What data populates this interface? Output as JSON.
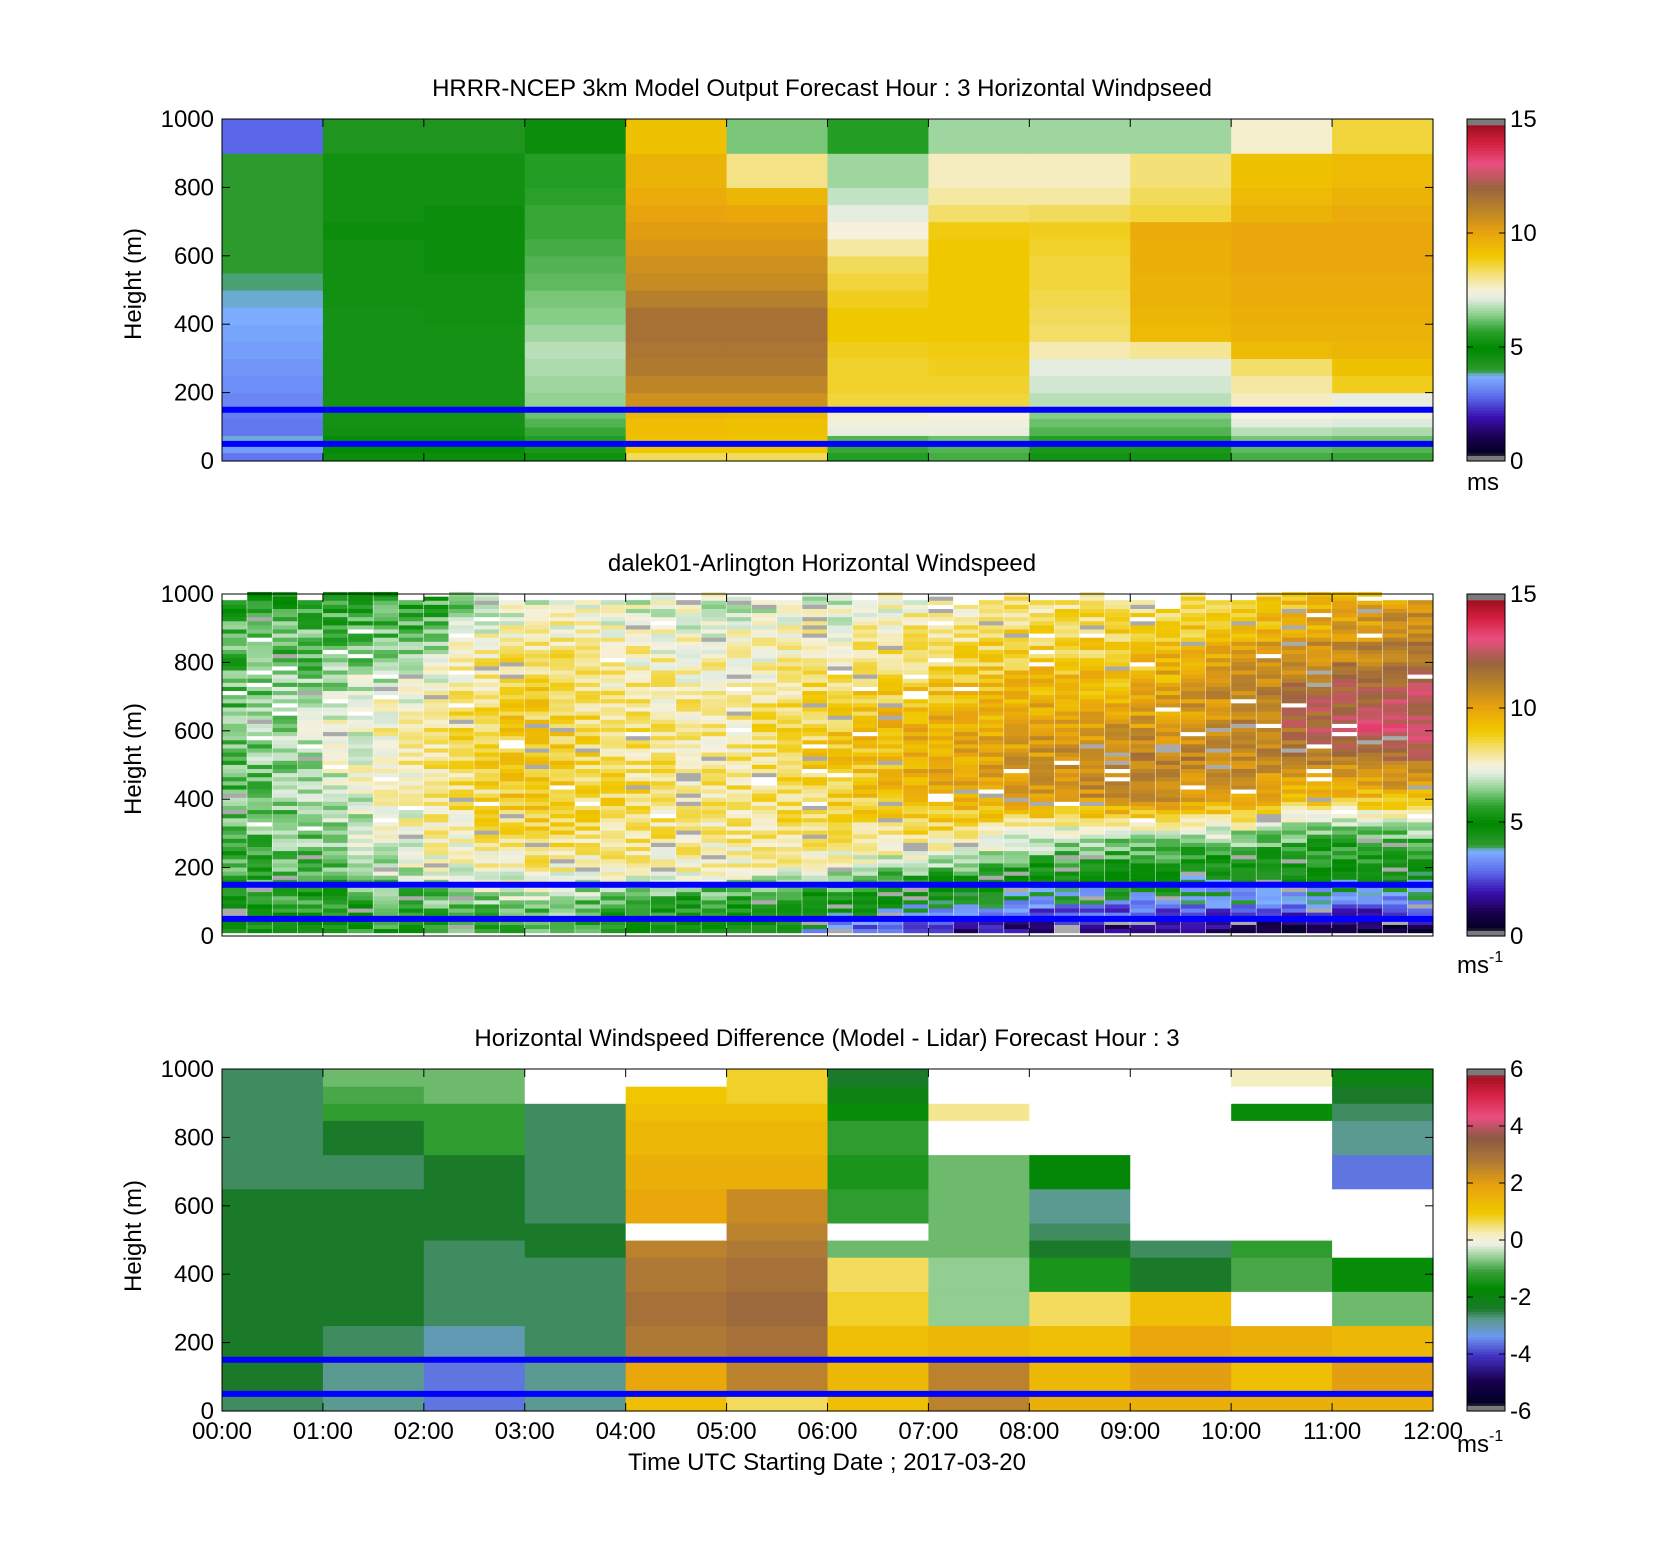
{
  "x_tick_labels": [
    "00:00",
    "01:00",
    "02:00",
    "03:00",
    "04:00",
    "05:00",
    "06:00",
    "07:00",
    "08:00",
    "09:00",
    "10:00",
    "11:00",
    "12:00"
  ],
  "xlabel": "Time UTC  Starting Date ; 2017-03-20",
  "chart_data": [
    {
      "type": "heatmap",
      "title": "HRRR-NCEP 3km Model Output   Forecast Hour : 3 Horizontal Windpseed",
      "ylabel": "Height (m)",
      "ylim": [
        0,
        1000
      ],
      "xlim": [
        "00:00",
        "12:00"
      ],
      "y_ticks": [
        0,
        200,
        400,
        600,
        800,
        1000
      ],
      "colorbar": {
        "ticks": [
          0,
          5,
          10,
          15
        ],
        "range": [
          0,
          15
        ],
        "unit": "ms",
        "unit_sup": "",
        "palette": "speed"
      },
      "reference_lines_m": [
        150,
        50
      ],
      "reference_line_color": "#0000ff",
      "x_bounds": [
        "00:00",
        "01:00",
        "02:00",
        "03:00",
        "04:00",
        "05:00",
        "06:00",
        "07:00",
        "08:00",
        "09:00",
        "10:00",
        "11:00",
        "12:00"
      ],
      "y_bounds": [
        0,
        25,
        50,
        75,
        100,
        125,
        150,
        200,
        250,
        300,
        350,
        400,
        450,
        500,
        550,
        600,
        650,
        700,
        750,
        800,
        900,
        1000
      ],
      "values": [
        [
          3.0,
          4.7,
          4.7,
          5.2,
          8.4,
          8.4,
          5.6,
          5.9,
          5.3,
          5.3,
          5.9,
          5.8
        ],
        [
          3.5,
          5.0,
          5.0,
          5.4,
          9.0,
          9.0,
          5.8,
          6.0,
          5.4,
          5.4,
          6.1,
          6.0
        ],
        [
          3.8,
          4.8,
          4.8,
          5.6,
          9.2,
          9.1,
          6.0,
          6.2,
          5.6,
          5.6,
          6.3,
          6.2
        ],
        [
          3.0,
          4.6,
          4.6,
          5.8,
          9.3,
          9.2,
          7.3,
          7.3,
          6.0,
          6.0,
          6.8,
          6.7
        ],
        [
          3.0,
          4.5,
          4.5,
          6.0,
          9.3,
          9.2,
          7.4,
          7.4,
          6.2,
          6.2,
          7.2,
          7.1
        ],
        [
          3.1,
          4.5,
          4.5,
          6.2,
          9.5,
          9.4,
          7.6,
          7.5,
          6.4,
          6.4,
          7.5,
          7.4
        ],
        [
          3.2,
          4.5,
          4.5,
          6.5,
          10.6,
          10.6,
          8.6,
          8.6,
          6.8,
          6.8,
          7.7,
          7.3
        ],
        [
          3.3,
          4.5,
          4.5,
          6.6,
          11.0,
          11.0,
          8.7,
          8.7,
          7.0,
          7.0,
          7.9,
          8.8
        ],
        [
          3.4,
          4.5,
          4.5,
          6.7,
          11.3,
          11.3,
          8.7,
          8.8,
          7.2,
          7.2,
          8.3,
          9.2
        ],
        [
          3.5,
          4.5,
          4.5,
          6.8,
          11.5,
          11.5,
          8.8,
          8.9,
          7.8,
          8.0,
          9.4,
          9.5
        ],
        [
          3.6,
          4.5,
          4.5,
          6.6,
          11.6,
          11.6,
          9.0,
          9.0,
          8.3,
          9.4,
          9.6,
          9.6
        ],
        [
          3.7,
          4.5,
          4.6,
          6.4,
          11.6,
          11.6,
          9.0,
          9.0,
          8.4,
          9.5,
          9.7,
          9.7
        ],
        [
          3.8,
          4.6,
          4.6,
          6.3,
          11.2,
          11.2,
          8.8,
          9.0,
          8.5,
          9.6,
          9.8,
          9.8
        ],
        [
          3.9,
          4.6,
          4.6,
          6.1,
          10.8,
          10.8,
          8.6,
          9.0,
          8.6,
          9.6,
          9.8,
          9.8
        ],
        [
          4.0,
          4.6,
          4.7,
          6.0,
          10.6,
          10.6,
          8.4,
          9.0,
          8.6,
          9.7,
          9.9,
          9.9
        ],
        [
          4.0,
          4.6,
          4.7,
          5.9,
          10.4,
          10.4,
          7.9,
          9.0,
          8.7,
          9.7,
          9.9,
          9.9
        ],
        [
          4.0,
          4.7,
          4.7,
          5.8,
          10.2,
          10.2,
          7.5,
          8.9,
          8.8,
          9.8,
          9.9,
          9.9
        ],
        [
          4.0,
          4.6,
          4.7,
          5.8,
          10.0,
          9.9,
          7.2,
          8.3,
          8.4,
          8.6,
          9.6,
          9.8
        ],
        [
          4.0,
          4.6,
          4.6,
          5.7,
          9.8,
          9.5,
          6.9,
          7.9,
          7.9,
          8.4,
          9.4,
          9.6
        ],
        [
          4.0,
          4.6,
          4.6,
          5.6,
          9.6,
          8.1,
          6.6,
          7.7,
          7.7,
          8.2,
          9.2,
          9.4
        ],
        [
          2.8,
          4.3,
          4.3,
          4.7,
          9.2,
          6.3,
          5.6,
          6.6,
          6.6,
          6.6,
          7.6,
          8.6
        ]
      ],
      "missing_value_color": "#aaaaaa"
    },
    {
      "type": "heatmap",
      "title": "dalek01-Arlington  Horizontal Windspeed",
      "ylabel": "Height (m)",
      "ylim": [
        0,
        1000
      ],
      "xlim": [
        "00:00",
        "12:00"
      ],
      "y_ticks": [
        0,
        200,
        400,
        600,
        800,
        1000
      ],
      "colorbar": {
        "ticks": [
          0,
          5,
          10,
          15
        ],
        "range": [
          0,
          15
        ],
        "unit": "ms",
        "unit_sup": "-1",
        "palette": "speed"
      },
      "reference_lines_m": [
        150,
        50
      ],
      "reference_line_color": "#0000ff",
      "time_bins_per_hour": 4,
      "profile_anchor_heights_m": [
        25,
        100,
        200,
        300,
        400,
        500,
        600,
        700,
        800,
        900,
        1000
      ],
      "profile_data_top_m": 1000,
      "hourly_profiles_ms": [
        [
          5.0,
          5.2,
          5.8,
          5.9,
          6.0,
          6.0,
          6.1,
          6.0,
          6.0,
          6.2,
          5.0
        ],
        [
          5.2,
          5.5,
          6.2,
          6.5,
          6.8,
          7.0,
          7.0,
          6.9,
          6.2,
          6.0,
          5.2
        ],
        [
          5.6,
          6.0,
          7.3,
          7.6,
          7.8,
          8.0,
          8.0,
          7.5,
          7.0,
          6.0,
          5.5
        ],
        [
          6.0,
          6.8,
          8.0,
          8.5,
          9.0,
          9.0,
          9.0,
          8.8,
          8.5,
          7.8,
          7.0
        ],
        [
          5.2,
          6.0,
          7.8,
          8.2,
          8.4,
          8.3,
          8.2,
          8.0,
          7.8,
          7.5,
          7.0
        ],
        [
          5.0,
          5.5,
          7.8,
          8.0,
          8.0,
          8.0,
          7.9,
          7.8,
          7.6,
          7.2,
          7.0
        ],
        [
          3.5,
          5.0,
          7.5,
          8.3,
          8.6,
          8.8,
          8.8,
          8.5,
          8.0,
          7.5,
          7.0
        ],
        [
          2.0,
          4.5,
          6.5,
          8.5,
          9.5,
          9.8,
          9.8,
          9.2,
          8.5,
          8.0,
          7.5
        ],
        [
          1.5,
          3.8,
          5.5,
          7.5,
          10.0,
          10.5,
          10.0,
          9.5,
          9.0,
          8.5,
          8.0
        ],
        [
          1.5,
          3.5,
          5.2,
          7.0,
          11.0,
          11.2,
          10.5,
          9.5,
          9.0,
          8.5,
          8.0
        ],
        [
          1.2,
          3.5,
          5.0,
          7.0,
          10.0,
          11.0,
          10.5,
          10.8,
          10.5,
          9.0,
          8.0
        ],
        [
          1.0,
          3.5,
          5.0,
          6.0,
          9.0,
          11.0,
          12.5,
          12.0,
          11.0,
          10.0,
          9.5
        ],
        [
          1.0,
          3.5,
          5.0,
          6.5,
          9.5,
          11.5,
          13.0,
          12.5,
          11.5,
          11.0,
          10.0
        ]
      ],
      "top_profile_cutoff_m": 1000,
      "missing_value_color": "#aaaaaa"
    },
    {
      "type": "heatmap",
      "title": "Horizontal Windspeed Difference (Model - Lidar) Forecast Hour : 3",
      "ylabel": "Height (m)",
      "ylim": [
        0,
        1000
      ],
      "xlim": [
        "00:00",
        "12:00"
      ],
      "y_ticks": [
        0,
        200,
        400,
        600,
        800,
        1000
      ],
      "colorbar": {
        "ticks": [
          -6,
          -4,
          -2,
          0,
          2,
          4,
          6
        ],
        "range": [
          -6,
          6
        ],
        "unit": "ms",
        "unit_sup": "-1",
        "palette": "diff"
      },
      "reference_lines_m": [
        150,
        50
      ],
      "reference_line_color": "#0000ff",
      "x_bounds": [
        "00:00",
        "01:00",
        "02:00",
        "03:00",
        "04:00",
        "05:00",
        "06:00",
        "07:00",
        "08:00",
        "09:00",
        "10:00",
        "11:00",
        "12:00"
      ],
      "y_bounds": [
        0,
        50,
        150,
        250,
        350,
        450,
        500,
        550,
        650,
        750,
        850,
        900,
        950,
        1000
      ],
      "values": [
        [
          -2.6,
          -2.8,
          -3.6,
          -2.8,
          1.2,
          0.6,
          1.2,
          2.6,
          1.6,
          1.6,
          1.6,
          1.6
        ],
        [
          -2.4,
          -2.8,
          -3.6,
          -2.8,
          1.8,
          2.6,
          1.4,
          2.6,
          1.4,
          2.0,
          1.2,
          2.0
        ],
        [
          -2.4,
          -2.6,
          -3.0,
          -2.6,
          2.8,
          3.0,
          1.2,
          1.4,
          1.2,
          1.8,
          1.6,
          1.4
        ],
        [
          -2.4,
          -2.4,
          -2.6,
          -2.6,
          3.0,
          3.2,
          0.8,
          -0.6,
          0.6,
          1.2,
          null,
          -0.8
        ],
        [
          -2.4,
          -2.4,
          -2.6,
          -2.6,
          2.8,
          3.0,
          0.6,
          -0.6,
          -1.4,
          -2.4,
          -1.0,
          -1.6
        ],
        [
          -2.4,
          -2.4,
          -2.6,
          -2.4,
          2.6,
          2.8,
          -0.8,
          -0.8,
          -2.4,
          -2.6,
          -1.2,
          null
        ],
        [
          -2.4,
          -2.4,
          -2.4,
          -2.4,
          null,
          2.6,
          null,
          -0.8,
          -2.6,
          null,
          null,
          null
        ],
        [
          -2.4,
          -2.4,
          -2.4,
          -2.6,
          1.8,
          2.4,
          -1.2,
          -0.8,
          -2.8,
          null,
          null,
          null
        ],
        [
          -2.6,
          -2.6,
          -2.4,
          -2.6,
          1.6,
          1.6,
          -1.4,
          -0.8,
          -1.8,
          null,
          null,
          -3.6
        ],
        [
          -2.6,
          -2.4,
          -1.2,
          -2.6,
          1.4,
          1.4,
          -1.2,
          null,
          null,
          null,
          null,
          -2.8
        ],
        [
          -2.6,
          -1.2,
          -1.2,
          -2.6,
          1.2,
          1.2,
          -1.6,
          0.4,
          null,
          null,
          -1.6,
          -2.6
        ],
        [
          -2.6,
          -1.0,
          -0.8,
          null,
          1.0,
          0.8,
          -2.0,
          null,
          null,
          null,
          null,
          -2.4
        ],
        [
          -2.6,
          -0.8,
          -0.8,
          null,
          null,
          0.8,
          -2.4,
          null,
          null,
          null,
          0.2,
          -2.0
        ]
      ],
      "missing_value_color": "#ffffff"
    }
  ],
  "palettes": {
    "speed": [
      [
        0.0,
        "#7a7a7a"
      ],
      [
        0.02,
        "#7a7a7a"
      ],
      [
        0.021,
        "#000022"
      ],
      [
        0.07,
        "#1a0050"
      ],
      [
        0.13,
        "#3a10b0"
      ],
      [
        0.19,
        "#5c6cec"
      ],
      [
        0.25,
        "#7eb0ff"
      ],
      [
        0.265,
        "#2e9a2e"
      ],
      [
        0.33,
        "#008a00"
      ],
      [
        0.38,
        "#2aa02a"
      ],
      [
        0.43,
        "#8dd08d"
      ],
      [
        0.475,
        "#e0ece0"
      ],
      [
        0.5,
        "#f6f1dc"
      ],
      [
        0.55,
        "#f3e070"
      ],
      [
        0.6,
        "#f0c800"
      ],
      [
        0.67,
        "#e8a20e"
      ],
      [
        0.74,
        "#b8822a"
      ],
      [
        0.8,
        "#9a6440"
      ],
      [
        0.87,
        "#ea4e80"
      ],
      [
        0.93,
        "#d42040"
      ],
      [
        0.98,
        "#a01020"
      ],
      [
        0.981,
        "#7a7a7a"
      ],
      [
        1.0,
        "#7a7a7a"
      ]
    ],
    "diff": [
      [
        0.0,
        "#7a7a7a"
      ],
      [
        0.02,
        "#7a7a7a"
      ],
      [
        0.021,
        "#000022"
      ],
      [
        0.09,
        "#1a0050"
      ],
      [
        0.16,
        "#4030c0"
      ],
      [
        0.22,
        "#6e98f0"
      ],
      [
        0.27,
        "#5a9a8a"
      ],
      [
        0.3,
        "#1a7a2a"
      ],
      [
        0.36,
        "#008a00"
      ],
      [
        0.41,
        "#3aa03a"
      ],
      [
        0.46,
        "#a8d8a8"
      ],
      [
        0.49,
        "#f0f0e8"
      ],
      [
        0.52,
        "#f6eebc"
      ],
      [
        0.58,
        "#f0c800"
      ],
      [
        0.66,
        "#e8a20e"
      ],
      [
        0.73,
        "#b07a34"
      ],
      [
        0.8,
        "#8a5a44"
      ],
      [
        0.86,
        "#ea4e80"
      ],
      [
        0.93,
        "#d42040"
      ],
      [
        0.979,
        "#a01020"
      ],
      [
        0.98,
        "#7a7a7a"
      ],
      [
        1.0,
        "#7a7a7a"
      ]
    ]
  }
}
